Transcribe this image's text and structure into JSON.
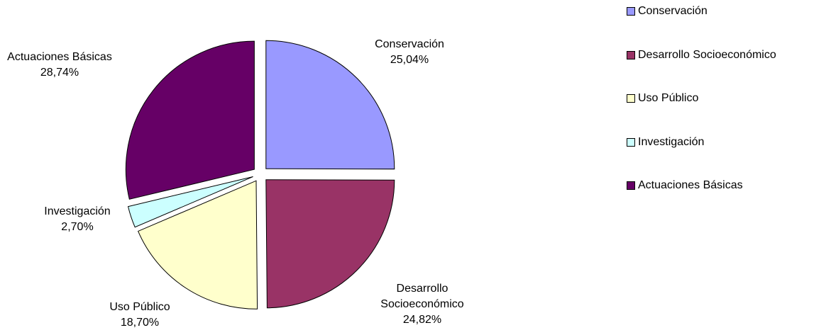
{
  "chart_data": {
    "type": "pie",
    "title": "",
    "slices": [
      {
        "name": "Conservación",
        "value": 25.04,
        "label_lines": [
          "Conservación",
          "25,04%"
        ],
        "color": "#9999FF"
      },
      {
        "name": "Desarrollo Socioeconómico",
        "value": 24.82,
        "label_lines": [
          "Desarrollo",
          "Socioeconómico",
          "24,82%"
        ],
        "color": "#993366"
      },
      {
        "name": "Uso Público",
        "value": 18.7,
        "label_lines": [
          "Uso Público",
          "18,70%"
        ],
        "color": "#FFFFCC"
      },
      {
        "name": "Investigación",
        "value": 2.7,
        "label_lines": [
          "Investigación",
          "2,70%"
        ],
        "color": "#CCFFFF"
      },
      {
        "name": "Actuaciones Básicas",
        "value": 28.74,
        "label_lines": [
          "Actuaciones Básicas",
          "28,74%"
        ],
        "color": "#660066"
      }
    ],
    "start_angle": "12 o'clock",
    "direction": "clockwise",
    "exploded": true,
    "legend_position": "right"
  }
}
